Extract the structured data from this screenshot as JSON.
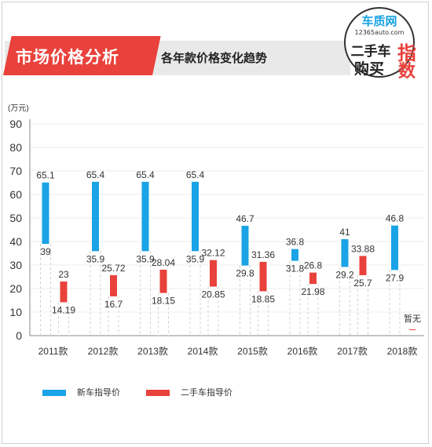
{
  "header": {
    "title": "市场价格分析",
    "subtitle": "各年款价格变化趋势"
  },
  "logo": {
    "brand": "车质网",
    "url": "12365auto.com",
    "line1": "二手车",
    "line2": "购买",
    "mark": "指",
    "mark2": "数"
  },
  "colors": {
    "new": "#1aa3e6",
    "used": "#e9413b",
    "accent": "#e9413b"
  },
  "chart_data": {
    "type": "bar",
    "unit": "(万元)",
    "ylim": [
      0,
      90
    ],
    "yticks": [
      0,
      10,
      20,
      30,
      40,
      50,
      60,
      70,
      80,
      90
    ],
    "categories": [
      "2011款",
      "2012款",
      "2013款",
      "2014款",
      "2015款",
      "2016款",
      "2017款",
      "2018款"
    ],
    "series": [
      {
        "name": "新车指导价",
        "low": [
          39,
          35.9,
          35.9,
          35.9,
          29.8,
          31.8,
          29.2,
          27.9
        ],
        "high": [
          65.1,
          65.4,
          65.4,
          65.4,
          46.7,
          36.8,
          41,
          46.8
        ]
      },
      {
        "name": "二手车指导价",
        "low": [
          14.19,
          16.7,
          18.15,
          20.85,
          18.85,
          21.98,
          25.7,
          null
        ],
        "high": [
          23,
          25.72,
          28.04,
          32.12,
          31.36,
          26.8,
          33.88,
          null
        ]
      }
    ],
    "annotations": [
      {
        "category": "2018款",
        "text": "暂无"
      }
    ],
    "legend": [
      "新车指导价",
      "二手车指导价"
    ]
  }
}
